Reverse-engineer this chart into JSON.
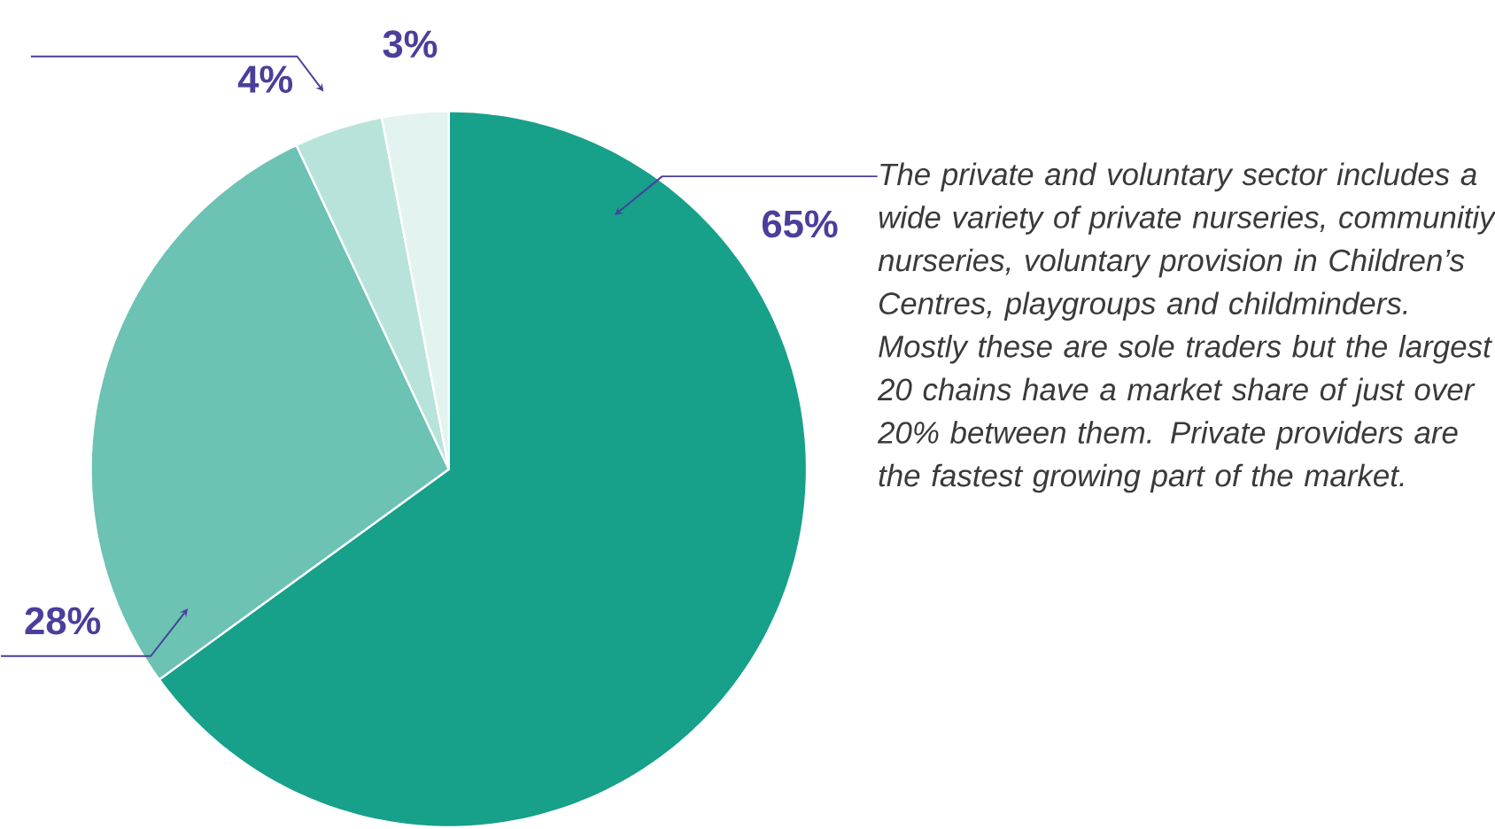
{
  "chart_data": {
    "type": "pie",
    "categories": [
      null,
      null,
      null,
      null
    ],
    "values": [
      65,
      28,
      4,
      3
    ],
    "colors": [
      "#17a08a",
      "#6cc2b3",
      "#b8e3db",
      "#e2f3f0"
    ],
    "value_labels": [
      "65%",
      "28%",
      "4%",
      "3%"
    ],
    "annotations": [
      "The private and voluntary sector includes a wide variety of private nurseries, communitiy nurseries, voluntary provision in Children’s Centres, playgroups and childminders. Mostly these are sole traders but the largest 20 chains have a market share of just over 20% between them. Private providers are the fastest growing part of the market."
    ]
  }
}
